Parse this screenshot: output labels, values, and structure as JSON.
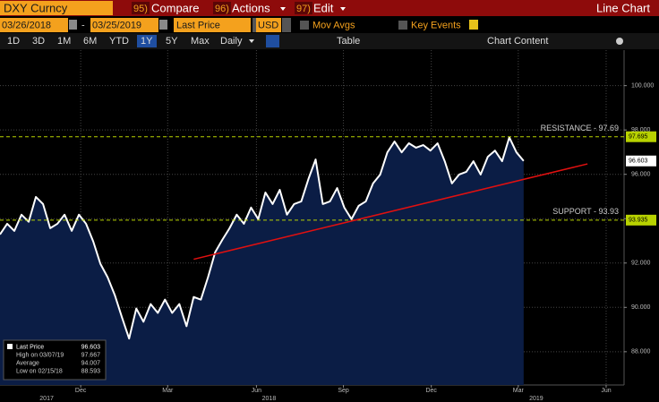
{
  "toolbar": {
    "ticker": "DXY Curncy",
    "compare_num": "95)",
    "compare": "Compare",
    "actions_num": "96)",
    "actions": "Actions",
    "edit_num": "97)",
    "edit": "Edit",
    "chart_type": "Line Chart",
    "start_date": "03/26/2018",
    "end_date": "03/25/2019",
    "field": "Last Price",
    "currency": "USD",
    "mov_avgs": "Mov Avgs",
    "key_events": "Key Events",
    "periods": [
      "1D",
      "3D",
      "1M",
      "6M",
      "YTD",
      "1Y",
      "5Y",
      "Max"
    ],
    "active_period": 5,
    "frequency": "Daily",
    "table": "Table",
    "chart_content": "Chart Content"
  },
  "chart_data": {
    "type": "line",
    "series": [
      {
        "name": "Last Price",
        "color": "#ffffff",
        "fill": "#0b1d45",
        "values": [
          93.29,
          93.77,
          93.45,
          94.18,
          93.86,
          94.98,
          94.66,
          93.57,
          93.77,
          94.18,
          93.45,
          94.18,
          93.77,
          92.97,
          91.96,
          91.36,
          90.56,
          89.55,
          88.593,
          89.95,
          89.35,
          90.15,
          89.75,
          90.35,
          89.75,
          90.15,
          89.15,
          90.47,
          90.35,
          91.36,
          92.49,
          93.05,
          93.57,
          94.18,
          93.77,
          94.5,
          93.98,
          95.18,
          94.66,
          95.3,
          94.18,
          94.66,
          94.78,
          95.79,
          96.67,
          94.66,
          94.78,
          95.38,
          94.5,
          93.98,
          94.58,
          94.78,
          95.59,
          95.99,
          96.99,
          97.48,
          96.99,
          97.4,
          97.2,
          97.32,
          97.07,
          97.4,
          96.59,
          95.59,
          95.99,
          96.11,
          96.59,
          95.99,
          96.79,
          97.07,
          96.59,
          97.667,
          96.99,
          96.603
        ]
      }
    ],
    "xlim": [
      0,
      87
    ],
    "xticks": [
      {
        "value": 11.25,
        "label": "Dec"
      },
      {
        "value": 23.375,
        "label": "Mar"
      },
      {
        "value": 35.75,
        "label": "Jun"
      },
      {
        "value": 47.875,
        "label": "Sep"
      },
      {
        "value": 60.125,
        "label": "Dec"
      },
      {
        "value": 72.25,
        "label": "Mar"
      },
      {
        "value": 84.5,
        "label": "Jun"
      }
    ],
    "year_labels": [
      {
        "value": 6.5,
        "label": "2017"
      },
      {
        "value": 37.5,
        "label": "2018"
      },
      {
        "value": 74.75,
        "label": "2019"
      }
    ],
    "ylim": [
      86.5,
      101.6
    ],
    "yticks": [
      {
        "value": 88,
        "label": "88.000"
      },
      {
        "value": 90,
        "label": "90.000"
      },
      {
        "value": 92,
        "label": "92.000"
      },
      {
        "value": 94,
        "label": "94.000"
      },
      {
        "value": 96,
        "label": "96.000"
      },
      {
        "value": 98,
        "label": "98.000"
      },
      {
        "value": 100,
        "label": "100.000"
      }
    ],
    "grid": true,
    "levels": [
      {
        "label": "RESISTANCE - 97.69",
        "value": 97.695,
        "color": "#b8d200"
      },
      {
        "label": "SUPPORT - 93.93",
        "value": 93.935,
        "color": "#b8d200"
      }
    ],
    "trend_line": {
      "x": [
        27,
        81.9
      ],
      "y": [
        92.17,
        96.47
      ],
      "color": "#e01010"
    },
    "stats": [
      {
        "label": "High on 03/07/19",
        "value": 97.667
      },
      {
        "label": "Average",
        "value": 94.007
      },
      {
        "label": "Low on 02/15/18",
        "value": 88.593
      }
    ]
  }
}
